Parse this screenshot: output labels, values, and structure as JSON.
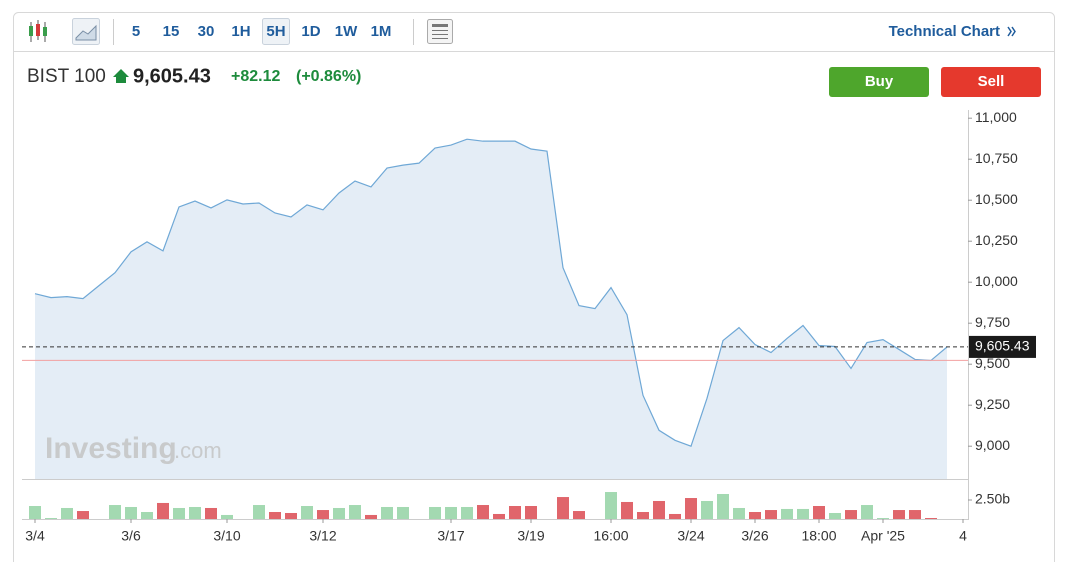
{
  "toolbar": {
    "intervals": [
      "5",
      "15",
      "30",
      "1H",
      "5H",
      "1D",
      "1W",
      "1M"
    ],
    "active_interval": "5H",
    "technical_chart": "Technical Chart"
  },
  "quote": {
    "name": "BIST 100",
    "price": "9,605.43",
    "change": "+82.12",
    "change_percent": "(+0.86%)"
  },
  "buttons": {
    "buy": "Buy",
    "sell": "Sell"
  },
  "watermark": {
    "brand": "Investing",
    "suffix": ".com"
  },
  "chart_data": {
    "type": "area",
    "color": "#6fa8d6",
    "fill": "#e4edf6",
    "categories": [
      "3/4",
      null,
      null,
      null,
      null,
      null,
      "3/6",
      null,
      null,
      null,
      null,
      null,
      "3/10",
      null,
      null,
      null,
      null,
      null,
      "3/12",
      null,
      null,
      null,
      null,
      null,
      null,
      null,
      "3/17",
      null,
      null,
      null,
      null,
      "3/19",
      null,
      null,
      null,
      null,
      "16:00",
      null,
      null,
      null,
      null,
      "3/24",
      null,
      null,
      null,
      "3/26",
      null,
      null,
      null,
      "18:00",
      null,
      null,
      null,
      "Apr '25",
      null,
      null,
      null,
      null,
      "4"
    ],
    "values": [
      9930,
      9906,
      9912,
      9900,
      9979,
      10058,
      10185,
      10246,
      10191,
      10459,
      10495,
      10453,
      10502,
      10477,
      10483,
      10422,
      10398,
      10471,
      10441,
      10544,
      10617,
      10581,
      10696,
      10714,
      10726,
      10818,
      10836,
      10872,
      10860,
      10860,
      10860,
      10812,
      10799,
      10088,
      9857,
      9839,
      9967,
      9802,
      9310,
      9097,
      9036,
      9000,
      9292,
      9644,
      9723,
      9620,
      9571,
      9657,
      9736,
      9614,
      9608,
      9474,
      9632,
      9650,
      9590,
      9529,
      9523,
      9605,
      null
    ],
    "ylim": [
      8800,
      11050
    ],
    "yticks": [
      {
        "value": 9000,
        "label": "9,000"
      },
      {
        "value": 9250,
        "label": "9,250"
      },
      {
        "value": 9500,
        "label": "9,500"
      },
      {
        "value": 9750,
        "label": "9,750"
      },
      {
        "value": 10000,
        "label": "10,000"
      },
      {
        "value": 10250,
        "label": "10,250"
      },
      {
        "value": 10500,
        "label": "10,500"
      },
      {
        "value": 10750,
        "label": "10,750"
      },
      {
        "value": 11000,
        "label": "11,000"
      }
    ],
    "last_price": {
      "value": 9605.43,
      "label": "9,605.43"
    },
    "previous_close": 9523,
    "grid": false,
    "volume": {
      "ylim": [
        0,
        5
      ],
      "yticks": [
        {
          "value": 2.5,
          "label": "2.50b"
        }
      ],
      "values": [
        1.71,
        0.13,
        1.45,
        1.05,
        null,
        1.84,
        1.58,
        0.92,
        2.11,
        1.45,
        1.58,
        1.45,
        0.53,
        null,
        1.84,
        0.92,
        0.79,
        1.71,
        1.18,
        1.45,
        1.84,
        0.53,
        1.58,
        1.58,
        null,
        1.58,
        1.58,
        1.58,
        1.84,
        0.66,
        1.71,
        1.71,
        null,
        2.89,
        1.05,
        null,
        3.55,
        2.24,
        0.92,
        2.37,
        0.66,
        2.76,
        2.37,
        3.29,
        1.45,
        0.92,
        1.18,
        1.32,
        1.32,
        1.71,
        0.79,
        1.18,
        1.84,
        0.13,
        1.18,
        1.18,
        0.13,
        null,
        null
      ],
      "colors": [
        "#a3d9b1",
        "#a3d9b1",
        "#a3d9b1",
        "#e0656b",
        null,
        "#a3d9b1",
        "#a3d9b1",
        "#a3d9b1",
        "#e0656b",
        "#a3d9b1",
        "#a3d9b1",
        "#e0656b",
        "#a3d9b1",
        null,
        "#a3d9b1",
        "#e0656b",
        "#e0656b",
        "#a3d9b1",
        "#e0656b",
        "#a3d9b1",
        "#a3d9b1",
        "#e0656b",
        "#a3d9b1",
        "#a3d9b1",
        null,
        "#a3d9b1",
        "#a3d9b1",
        "#a3d9b1",
        "#e0656b",
        "#e0656b",
        "#e0656b",
        "#e0656b",
        null,
        "#e0656b",
        "#e0656b",
        null,
        "#a3d9b1",
        "#e0656b",
        "#e0656b",
        "#e0656b",
        "#e0656b",
        "#e0656b",
        "#a3d9b1",
        "#a3d9b1",
        "#a3d9b1",
        "#e0656b",
        "#e0656b",
        "#a3d9b1",
        "#a3d9b1",
        "#e0656b",
        "#a3d9b1",
        "#e0656b",
        "#a3d9b1",
        "#a3d9b1",
        "#e0656b",
        "#e0656b",
        "#e0656b",
        null,
        null
      ]
    }
  }
}
